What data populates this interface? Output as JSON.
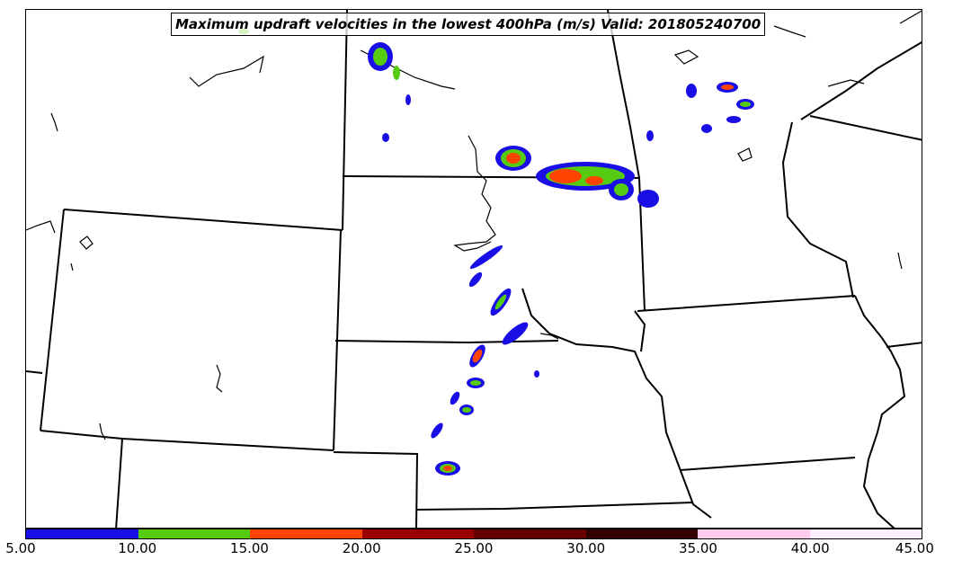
{
  "title": "Maximum updraft velocities in the lowest 400hPa (m/s) Valid: 201805240700",
  "colorbar": {
    "colors": [
      "#1a0ee6",
      "#55cc11",
      "#ff4400",
      "#990000",
      "#660000",
      "#330000",
      "#ffccee",
      "#ffeeff"
    ],
    "ticks": [
      "5.00",
      "10.00",
      "15.00",
      "20.00",
      "25.00",
      "30.00",
      "35.00",
      "40.00",
      "45.00"
    ]
  },
  "icons": [
    "state-boundary-lines",
    "coastline-lines",
    "updraft-contours"
  ]
}
